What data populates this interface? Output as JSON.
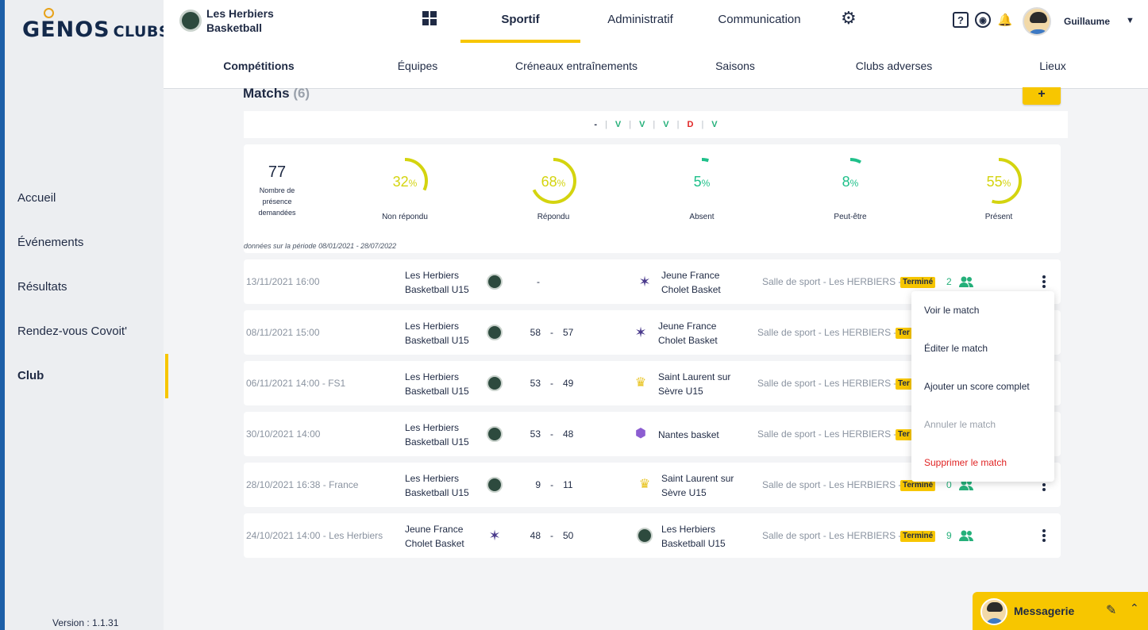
{
  "brand": {
    "name_big": "GENOS",
    "name_small": "CLUBS"
  },
  "sidebar": {
    "items": [
      {
        "label": "Accueil"
      },
      {
        "label": "Événements"
      },
      {
        "label": "Résultats"
      },
      {
        "label": "Rendez-vous Covoit'"
      },
      {
        "label": "Club"
      }
    ],
    "active": "Club",
    "version": "Version : 1.1.31"
  },
  "header": {
    "club_name": "Les Herbiers Basketball",
    "tabs": [
      {
        "label": "Sportif"
      },
      {
        "label": "Administratif"
      },
      {
        "label": "Communication"
      }
    ],
    "active_tab": "Sportif",
    "user_name": "Guillaume",
    "subtabs": [
      {
        "label": "Compétitions"
      },
      {
        "label": "Équipes"
      },
      {
        "label": "Créneaux entraînements"
      },
      {
        "label": "Saisons"
      },
      {
        "label": "Clubs adverses"
      },
      {
        "label": "Lieux"
      }
    ],
    "active_subtab": "Compétitions",
    "icons": {
      "help": "?",
      "ball": "◉",
      "bell": "🔔"
    }
  },
  "matches": {
    "title": "Matchs",
    "count": "(6)",
    "add_label": "+",
    "form": [
      "-",
      "V",
      "V",
      "V",
      "D",
      "V"
    ],
    "form_sep": "|"
  },
  "stats": {
    "total_value": "77",
    "total_label": "Nombre de présence demandées",
    "items": [
      {
        "label": "Non répondu",
        "value": "32",
        "fraction": 0.32,
        "color": "#d4d40f"
      },
      {
        "label": "Répondu",
        "value": "68",
        "fraction": 0.68,
        "color": "#d4d40f"
      },
      {
        "label": "Absent",
        "value": "5",
        "fraction": 0.05,
        "color": "#1fc08a"
      },
      {
        "label": "Peut-être",
        "value": "8",
        "fraction": 0.08,
        "color": "#1fc08a"
      },
      {
        "label": "Présent",
        "value": "55",
        "fraction": 0.55,
        "color": "#d4d40f"
      }
    ],
    "percent_sign": "%",
    "period": "données sur la période 08/01/2021 - 28/07/2022"
  },
  "match_rows": [
    {
      "date": "13/11/2021 16:00",
      "home": "Les Herbiers Basketball U15",
      "home_logo": "herbiers",
      "score_home": "",
      "score_sep": "-",
      "score_away": "",
      "away": "Jeune France Cholet Basket",
      "away_logo": "star",
      "venue": "Salle de sport - Les HERBIERS -",
      "status": "Terminé",
      "attendance": "2"
    },
    {
      "date": "08/11/2021 15:00",
      "home": "Les Herbiers Basketball U15",
      "home_logo": "herbiers",
      "score_home": "58",
      "score_sep": "-",
      "score_away": "57",
      "away": "Jeune France Cholet Basket",
      "away_logo": "star",
      "venue": "Salle de sport - Les HERBIERS -",
      "status": "Ter",
      "attendance": ""
    },
    {
      "date": "06/11/2021 14:00 - FS1",
      "home": "Les Herbiers Basketball U15",
      "home_logo": "herbiers",
      "score_home": "53",
      "score_sep": "-",
      "score_away": "49",
      "away": "Saint Laurent sur Sèvre U15",
      "away_logo": "crown",
      "venue": "Salle de sport - Les HERBIERS -",
      "status": "Ter",
      "attendance": ""
    },
    {
      "date": "30/10/2021 14:00",
      "home": "Les Herbiers Basketball U15",
      "home_logo": "herbiers",
      "score_home": "53",
      "score_sep": "-",
      "score_away": "48",
      "away": "Nantes basket",
      "away_logo": "purple",
      "venue": "Salle de sport - Les HERBIERS -",
      "status": "Ter",
      "attendance": ""
    },
    {
      "date": "28/10/2021 16:38 - France",
      "home": "Les Herbiers Basketball U15",
      "home_logo": "herbiers",
      "score_home": "9",
      "score_sep": "-",
      "score_away": "11",
      "away": "Saint Laurent sur Sèvre U15",
      "away_logo": "crown",
      "venue": "Salle de sport - Les HERBIERS -",
      "status": "Terminé",
      "attendance": "0"
    },
    {
      "date": "24/10/2021 14:00 - Les Herbiers",
      "home": "Jeune France Cholet Basket",
      "home_logo": "star",
      "score_home": "48",
      "score_sep": "-",
      "score_away": "50",
      "away": "Les Herbiers Basketball U15",
      "away_logo": "herbiers",
      "venue": "Salle de sport - Les HERBIERS -",
      "status": "Terminé",
      "attendance": "9"
    }
  ],
  "context_menu": {
    "items": [
      {
        "label": "Voir le match",
        "state": "normal"
      },
      {
        "label": "Éditer le match",
        "state": "normal"
      },
      {
        "label": "Ajouter un score complet",
        "state": "normal"
      },
      {
        "label": "Annuler le match",
        "state": "disabled"
      },
      {
        "label": "Supprimer le match",
        "state": "danger"
      }
    ]
  },
  "messenger": {
    "label": "Messagerie"
  },
  "colors": {
    "accent": "#f7c600",
    "navy": "#1f2a44",
    "green": "#25b07a",
    "red": "#e02424"
  }
}
